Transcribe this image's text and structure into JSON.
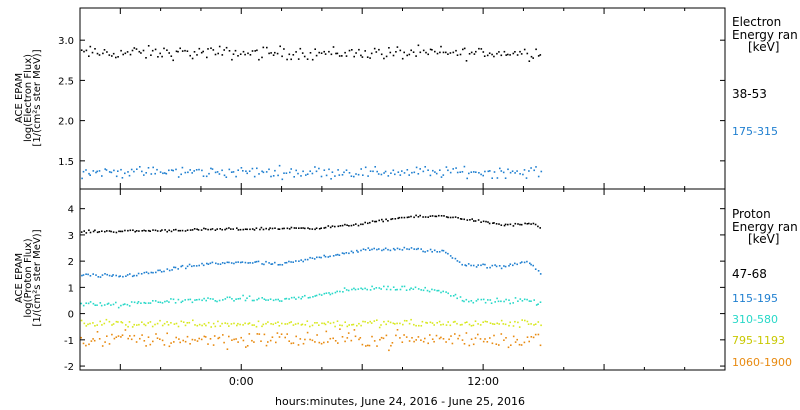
{
  "xlabel": "hours:minutes, June 24, 2016 - June 25, 2016",
  "x_ticks": [
    {
      "hour": 0,
      "label": "0:00"
    },
    {
      "hour": 12,
      "label": "12:00"
    }
  ],
  "x_range_hours": [
    -8,
    24
  ],
  "data_end_hour": 14.9,
  "chart_data": [
    {
      "type": "scatter",
      "panel": "electron",
      "ylabel_lines": [
        "ACE EPAM",
        "log(Electron Flux)",
        "[1/(cm²s ster MeV)]"
      ],
      "ylim": [
        1.15,
        3.4
      ],
      "yticks": [
        1.5,
        2.0,
        2.5,
        3.0
      ],
      "ytick_labels": [
        "1.5",
        "2.0",
        "2.5",
        "3.0"
      ],
      "legend_title": [
        "Electron",
        "Energy ran",
        "[keV]"
      ],
      "series": [
        {
          "name": "38-53",
          "color": "#000000",
          "level": 2.85,
          "noise": 0.07,
          "trend": []
        },
        {
          "name": "175-315",
          "color": "#1f7fd0",
          "level": 1.37,
          "noise": 0.06,
          "trend": []
        }
      ]
    },
    {
      "type": "scatter",
      "panel": "proton",
      "ylabel_lines": [
        "ACE EPAM",
        "log(Proton Flux)",
        "[1/(cm²s ster MeV)]"
      ],
      "ylim": [
        -2.15,
        4.75
      ],
      "yticks": [
        -2,
        -1,
        0,
        1,
        2,
        3,
        4
      ],
      "ytick_labels": [
        "-2",
        "-1",
        "0",
        "1",
        "2",
        "3",
        "4"
      ],
      "legend_title": [
        "Proton",
        "Energy ran",
        "[keV]"
      ],
      "series": [
        {
          "name": "47-68",
          "color": "#000000",
          "noise": 0.04,
          "trend": [
            [
              -8,
              3.15
            ],
            [
              -4,
              3.2
            ],
            [
              0,
              3.25
            ],
            [
              4,
              3.3
            ],
            [
              6,
              3.45
            ],
            [
              8,
              3.7
            ],
            [
              10,
              3.75
            ],
            [
              11,
              3.65
            ],
            [
              13,
              3.4
            ],
            [
              14.5,
              3.45
            ],
            [
              14.9,
              3.2
            ]
          ]
        },
        {
          "name": "115-195",
          "color": "#1f7fd0",
          "noise": 0.06,
          "trend": [
            [
              -8,
              1.5
            ],
            [
              -6,
              1.45
            ],
            [
              -4,
              1.65
            ],
            [
              -2,
              1.9
            ],
            [
              0,
              2.0
            ],
            [
              2,
              1.9
            ],
            [
              4,
              2.2
            ],
            [
              6,
              2.45
            ],
            [
              8,
              2.5
            ],
            [
              10,
              2.4
            ],
            [
              11,
              1.9
            ],
            [
              13,
              1.8
            ],
            [
              14.2,
              2.05
            ],
            [
              14.9,
              1.5
            ]
          ]
        },
        {
          "name": "310-580",
          "color": "#28d8c8",
          "noise": 0.08,
          "trend": [
            [
              -8,
              0.4
            ],
            [
              -6,
              0.35
            ],
            [
              -4,
              0.5
            ],
            [
              -2,
              0.55
            ],
            [
              0,
              0.6
            ],
            [
              2,
              0.55
            ],
            [
              4,
              0.75
            ],
            [
              6,
              1.0
            ],
            [
              8,
              1.0
            ],
            [
              10,
              0.9
            ],
            [
              11,
              0.55
            ],
            [
              13,
              0.5
            ],
            [
              14.2,
              0.55
            ],
            [
              14.9,
              0.35
            ]
          ]
        },
        {
          "name": "795-1193",
          "color": "#d8e820",
          "level": -0.35,
          "noise": 0.12,
          "trend": []
        },
        {
          "name": "1060-1900",
          "color": "#e88a10",
          "level": -0.95,
          "noise": 0.28,
          "trend": []
        }
      ]
    }
  ]
}
